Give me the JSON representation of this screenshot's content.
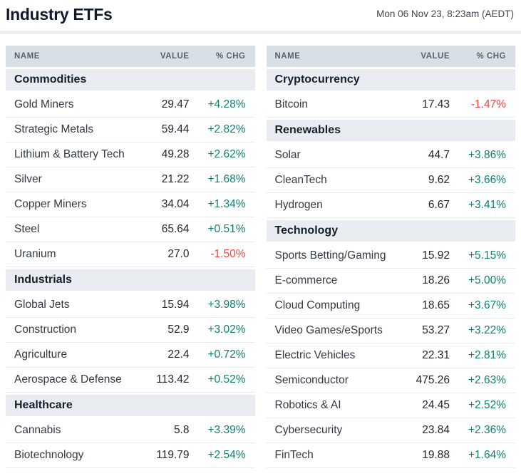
{
  "header": {
    "title": "Industry ETFs",
    "timestamp": "Mon 06 Nov 23, 8:23am (AEDT)"
  },
  "columns": {
    "name": "NAME",
    "value": "VALUE",
    "chg": "% CHG"
  },
  "colors": {
    "positive": "#0d8271",
    "negative": "#ee453c"
  },
  "chart_data": {
    "type": "table",
    "title": "Industry ETFs",
    "timestamp": "Mon 06 Nov 23, 8:23am (AEDT)",
    "columns": [
      "NAME",
      "VALUE",
      "% CHG"
    ],
    "panels": {
      "left": {
        "sections": [
          {
            "label": "Commodities",
            "rows": [
              {
                "name": "Gold Miners",
                "value": "29.47",
                "chg": "+4.28%"
              },
              {
                "name": "Strategic Metals",
                "value": "59.44",
                "chg": "+2.82%"
              },
              {
                "name": "Lithium & Battery Tech",
                "value": "49.28",
                "chg": "+2.62%"
              },
              {
                "name": "Silver",
                "value": "21.22",
                "chg": "+1.68%"
              },
              {
                "name": "Copper Miners",
                "value": "34.04",
                "chg": "+1.34%"
              },
              {
                "name": "Steel",
                "value": "65.64",
                "chg": "+0.51%"
              },
              {
                "name": "Uranium",
                "value": "27.0",
                "chg": "-1.50%"
              }
            ]
          },
          {
            "label": "Industrials",
            "rows": [
              {
                "name": "Global Jets",
                "value": "15.94",
                "chg": "+3.98%"
              },
              {
                "name": "Construction",
                "value": "52.9",
                "chg": "+3.02%"
              },
              {
                "name": "Agriculture",
                "value": "22.4",
                "chg": "+0.72%"
              },
              {
                "name": "Aerospace & Defense",
                "value": "113.42",
                "chg": "+0.52%"
              }
            ]
          },
          {
            "label": "Healthcare",
            "rows": [
              {
                "name": "Cannabis",
                "value": "5.8",
                "chg": "+3.39%"
              },
              {
                "name": "Biotechnology",
                "value": "119.79",
                "chg": "+2.54%"
              }
            ]
          }
        ]
      },
      "right": {
        "sections": [
          {
            "label": "Cryptocurrency",
            "rows": [
              {
                "name": "Bitcoin",
                "value": "17.43",
                "chg": "-1.47%"
              }
            ]
          },
          {
            "label": "Renewables",
            "rows": [
              {
                "name": "Solar",
                "value": "44.7",
                "chg": "+3.86%"
              },
              {
                "name": "CleanTech",
                "value": "9.62",
                "chg": "+3.66%"
              },
              {
                "name": "Hydrogen",
                "value": "6.67",
                "chg": "+3.41%"
              }
            ]
          },
          {
            "label": "Technology",
            "rows": [
              {
                "name": "Sports Betting/Gaming",
                "value": "15.92",
                "chg": "+5.15%"
              },
              {
                "name": "E-commerce",
                "value": "18.26",
                "chg": "+5.00%"
              },
              {
                "name": "Cloud Computing",
                "value": "18.65",
                "chg": "+3.67%"
              },
              {
                "name": "Video Games/eSports",
                "value": "53.27",
                "chg": "+3.22%"
              },
              {
                "name": "Electric Vehicles",
                "value": "22.31",
                "chg": "+2.81%"
              },
              {
                "name": "Semiconductor",
                "value": "475.26",
                "chg": "+2.63%"
              },
              {
                "name": "Robotics & AI",
                "value": "24.45",
                "chg": "+2.52%"
              },
              {
                "name": "Cybersecurity",
                "value": "23.84",
                "chg": "+2.36%"
              },
              {
                "name": "FinTech",
                "value": "19.88",
                "chg": "+1.64%"
              }
            ]
          }
        ]
      }
    }
  }
}
